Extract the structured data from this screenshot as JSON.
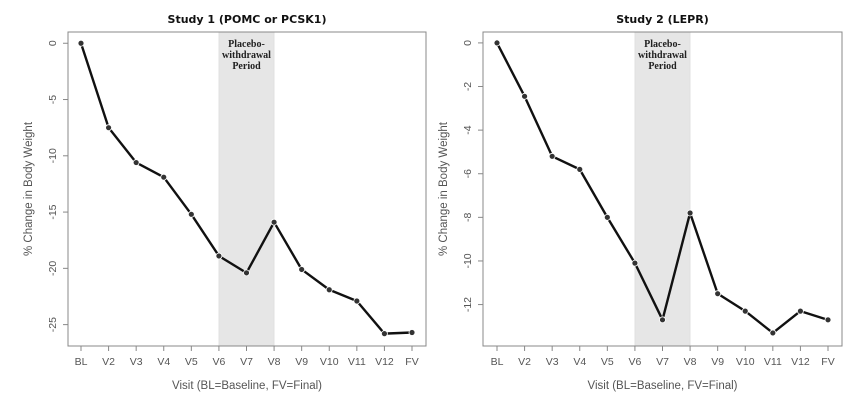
{
  "chart_data": [
    {
      "type": "line",
      "title": "Study 1 (POMC or PCSK1)",
      "xlabel": "Visit (BL=Baseline, FV=Final)",
      "ylabel": "% Change in Body Weight",
      "categories": [
        "BL",
        "V2",
        "V3",
        "V4",
        "V5",
        "V6",
        "V7",
        "V8",
        "V9",
        "V10",
        "V11",
        "V12",
        "FV"
      ],
      "values": [
        0,
        -7.5,
        -10.6,
        -11.9,
        -15.2,
        -18.9,
        -20.4,
        -15.9,
        -20.1,
        -21.9,
        -22.9,
        -25.8,
        -25.7
      ],
      "ylim": [
        -26.9,
        1.0
      ],
      "yticks": [
        0,
        -5,
        -10,
        -15,
        -20,
        -25
      ],
      "shaded_region": {
        "from": "V6",
        "to": "V8",
        "label": [
          "Placebo-",
          "withdrawal",
          "Period"
        ],
        "color": "#e6e6e6"
      },
      "grid": false,
      "line_color": "#111111"
    },
    {
      "type": "line",
      "title": "Study 2 (LEPR)",
      "xlabel": "Visit (BL=Baseline, FV=Final)",
      "ylabel": "% Change in Body Weight",
      "categories": [
        "BL",
        "V2",
        "V3",
        "V4",
        "V5",
        "V6",
        "V7",
        "V8",
        "V9",
        "V10",
        "V11",
        "V12",
        "FV"
      ],
      "values": [
        0,
        -2.45,
        -5.2,
        -5.8,
        -8.0,
        -10.1,
        -12.7,
        -7.8,
        -11.5,
        -12.3,
        -13.3,
        -12.3,
        -12.7
      ],
      "ylim": [
        -13.9,
        0.5
      ],
      "yticks": [
        0,
        -2,
        -4,
        -6,
        -8,
        -10,
        -12
      ],
      "shaded_region": {
        "from": "V6",
        "to": "V8",
        "label": [
          "Placebo-",
          "withdrawal",
          "Period"
        ],
        "color": "#e6e6e6"
      },
      "grid": false,
      "line_color": "#111111"
    }
  ]
}
